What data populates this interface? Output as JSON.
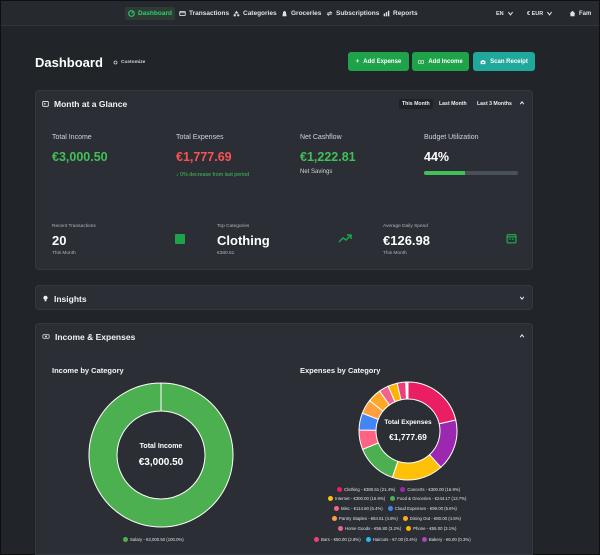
{
  "nav": {
    "items": [
      {
        "label": "Dashboard",
        "icon": "dashboard-icon"
      },
      {
        "label": "Transactions",
        "icon": "transactions-icon"
      },
      {
        "label": "Categories",
        "icon": "categories-icon"
      },
      {
        "label": "Groceries",
        "icon": "groceries-icon"
      },
      {
        "label": "Subscriptions",
        "icon": "subscriptions-icon"
      },
      {
        "label": "Reports",
        "icon": "reports-icon"
      }
    ],
    "language": "EN",
    "currency": "€ EUR",
    "user": "Fam"
  },
  "header": {
    "title": "Dashboard",
    "customize_label": "Customize",
    "add_expense_label": "Add Expense",
    "add_income_label": "Add Income",
    "scan_receipt_label": "Scan Receipt"
  },
  "glance": {
    "title": "Month at a Glance",
    "ranges": [
      "This Month",
      "Last Month",
      "Last 3 Months"
    ],
    "active_range": "This Month",
    "total_income_label": "Total Income",
    "total_income": "€3,000.50",
    "total_expenses_label": "Total Expenses",
    "total_expenses": "€1,777.69",
    "expense_change": "↓ 0% decrease from last period",
    "net_cashflow_label": "Net Cashflow",
    "net_cashflow": "€1,222.81",
    "net_sub": "Net Savings",
    "budget_label": "Budget Utilization",
    "budget_value": "44%",
    "budget_fraction": 0.44,
    "recent_label": "Recent Transactions",
    "recent_value": "20",
    "recent_sub": "This Month",
    "top_cat_label": "Top Categories",
    "top_cat_value": "Clothing",
    "top_cat_sub": "€380.61",
    "avg_label": "Average Daily Spend",
    "avg_value": "€126.98",
    "avg_sub": "This Month"
  },
  "insights": {
    "title": "Insights"
  },
  "income_expenses": {
    "title": "Income & Expenses",
    "income_chart_title": "Income by Category",
    "expense_chart_title": "Expenses by Category",
    "income_center_label": "Total Income",
    "income_center_value": "€3,000.50",
    "expense_center_label": "Total Expenses",
    "expense_center_value": "€1,777.69"
  },
  "colors": {
    "green": "#40c057",
    "red": "#fa5252",
    "accent": "#1fa34a",
    "teal": "#20a99a"
  },
  "chart_data": [
    {
      "type": "pie",
      "title": "Income by Category",
      "categories": [
        "Salary - €3,000.50 (100.0%)"
      ],
      "values": [
        3000.5
      ],
      "colors": [
        "#4caf50"
      ]
    },
    {
      "type": "pie",
      "title": "Expenses by Category",
      "categories": [
        "Clothing - €380.61 (21.4%)",
        "Concerts - €300.00 (16.9%)",
        "Internet - €300.00 (16.9%)",
        "Food & Groceries - €244.17 (13.7%)",
        "Misc - €114.60 (6.4%)",
        "Cloud Expenses - €99.00 (5.6%)",
        "Pantry Staples - €84.51 (4.8%)",
        "Dining Out - €80.00 (4.5%)",
        "Home Goods - €56.80 (3.2%)",
        "Phone - €55.00 (3.1%)",
        "Bars - €50.00 (2.8%)",
        "Haircuts - €7.00 (0.4%)",
        "Bakery - €6.00 (0.3%)"
      ],
      "values": [
        380.61,
        300.0,
        300.0,
        244.17,
        114.6,
        99.0,
        84.51,
        80.0,
        56.8,
        55.0,
        50.0,
        7.0,
        6.0
      ],
      "colors": [
        "#e91e63",
        "#9c27b0",
        "#ffc107",
        "#4caf50",
        "#ff6384",
        "#4285f4",
        "#ff9f40",
        "#ffa726",
        "#f06292",
        "#ffb300",
        "#ec407a",
        "#29b6f6",
        "#ab47bc"
      ]
    }
  ]
}
